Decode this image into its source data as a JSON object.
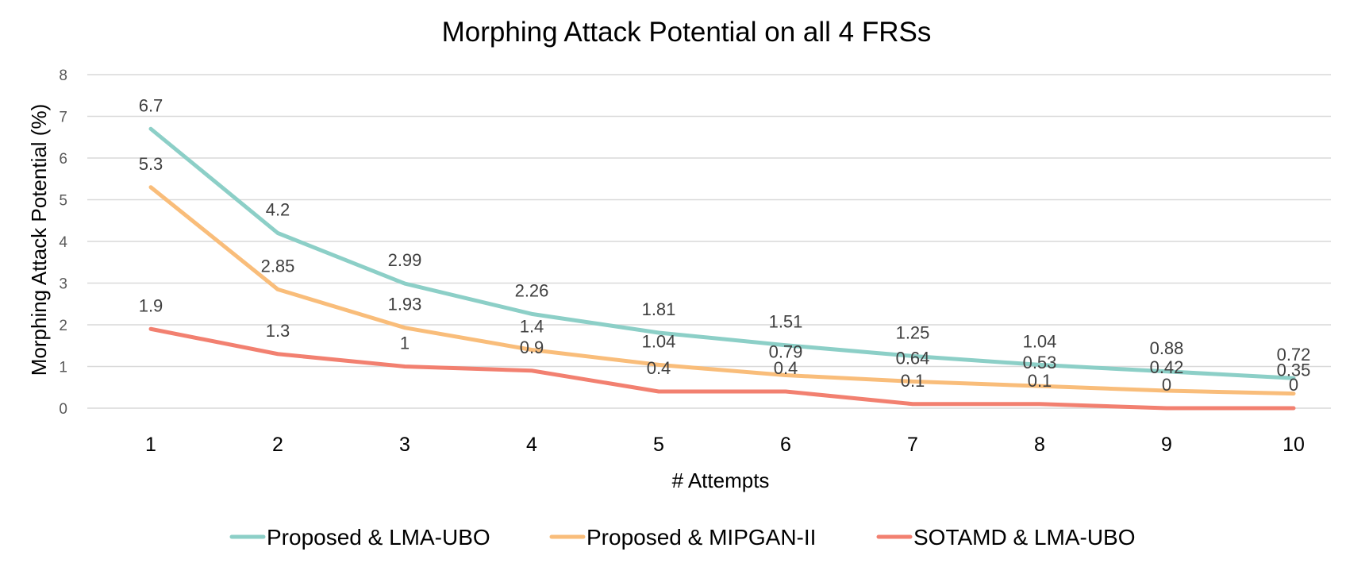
{
  "chart_data": {
    "type": "line",
    "title": "Morphing Attack Potential on all 4 FRSs",
    "xlabel": "# Attempts",
    "ylabel": "Morphing Attack Potential (%)",
    "ylim": [
      0,
      8
    ],
    "yticks": [
      "0",
      "1",
      "2",
      "3",
      "4",
      "5",
      "6",
      "7",
      "8"
    ],
    "grid": true,
    "legend_position": "bottom",
    "categories": [
      "1",
      "2",
      "3",
      "4",
      "5",
      "6",
      "7",
      "8",
      "9",
      "10"
    ],
    "series": [
      {
        "name": "Proposed & LMA-UBO",
        "color": "#8ccfc7",
        "values": [
          6.7,
          4.2,
          2.99,
          2.26,
          1.81,
          1.51,
          1.25,
          1.04,
          0.88,
          0.72
        ],
        "labels": [
          "6.7",
          "4.2",
          "2.99",
          "2.26",
          "1.81",
          "1.51",
          "1.25",
          "1.04",
          "0.88",
          "0.72"
        ]
      },
      {
        "name": "Proposed & MIPGAN-II",
        "color": "#f9bd7a",
        "values": [
          5.3,
          2.85,
          1.93,
          1.4,
          1.04,
          0.79,
          0.64,
          0.53,
          0.42,
          0.35
        ],
        "labels": [
          "5.3",
          "2.85",
          "1.93",
          "1.4",
          "1.04",
          "0.79",
          "0.64",
          "0.53",
          "0.42",
          "0.35"
        ]
      },
      {
        "name": "SOTAMD & LMA-UBO",
        "color": "#f28070",
        "values": [
          1.9,
          1.3,
          1,
          0.9,
          0.4,
          0.4,
          0.1,
          0.1,
          0,
          0
        ],
        "labels": [
          "1.9",
          "1.3",
          "1",
          "0.9",
          "0.4",
          "0.4",
          "0.1",
          "0.1",
          "0",
          "0"
        ]
      }
    ]
  }
}
